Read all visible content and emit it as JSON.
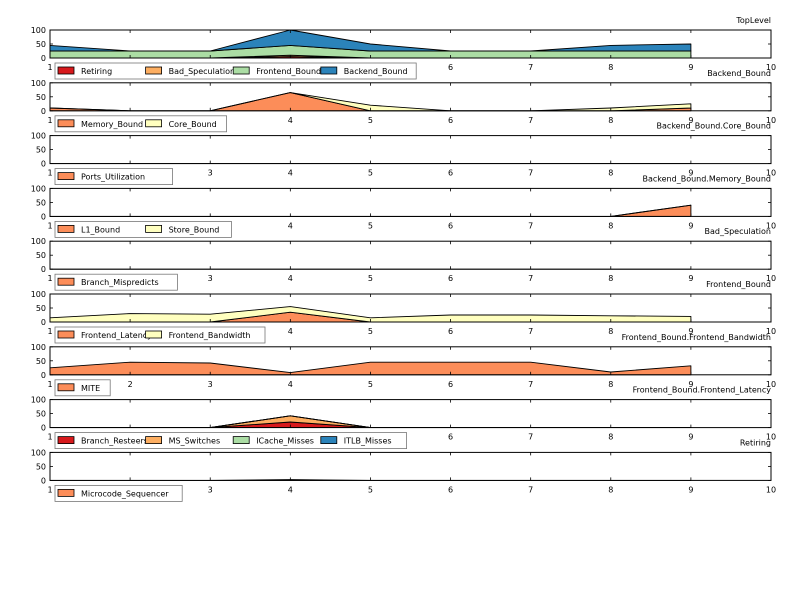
{
  "chart_data": [
    {
      "type": "area",
      "title": "TopLevel",
      "x": [
        1,
        2,
        3,
        4,
        5,
        6,
        7,
        8,
        9
      ],
      "xlim": [
        1,
        10
      ],
      "ylim": [
        0,
        100
      ],
      "y_ticks": [
        0,
        50,
        100
      ],
      "x_ticks": [
        1,
        2,
        3,
        4,
        5,
        6,
        7,
        8,
        9,
        10
      ],
      "stacked": true,
      "series": [
        {
          "name": "Retiring",
          "color": "#d7191c",
          "values": [
            0,
            0,
            0,
            5,
            0,
            0,
            0,
            0,
            0
          ]
        },
        {
          "name": "Bad_Speculation",
          "color": "#fdae61",
          "values": [
            0,
            0,
            0,
            5,
            0,
            0,
            0,
            0,
            0
          ]
        },
        {
          "name": "Frontend_Bound",
          "color": "#abdda4",
          "values": [
            25,
            25,
            25,
            35,
            25,
            25,
            25,
            25,
            25
          ]
        },
        {
          "name": "Backend_Bound",
          "color": "#2b83ba",
          "values": [
            20,
            0,
            0,
            55,
            25,
            0,
            0,
            20,
            25
          ]
        }
      ]
    },
    {
      "type": "area",
      "title": "Backend_Bound",
      "x": [
        1,
        2,
        3,
        4,
        5,
        6,
        7,
        8,
        9
      ],
      "xlim": [
        1,
        10
      ],
      "ylim": [
        0,
        100
      ],
      "y_ticks": [
        0,
        50,
        100
      ],
      "x_ticks": [
        1,
        2,
        3,
        4,
        5,
        6,
        7,
        8,
        9,
        10
      ],
      "stacked": true,
      "series": [
        {
          "name": "Memory_Bound",
          "color": "#fc8d59",
          "values": [
            10,
            0,
            0,
            65,
            0,
            0,
            0,
            0,
            10
          ]
        },
        {
          "name": "Core_Bound",
          "color": "#ffffbf",
          "values": [
            0,
            0,
            0,
            0,
            20,
            0,
            0,
            10,
            15
          ]
        }
      ]
    },
    {
      "type": "area",
      "title": "Backend_Bound.Core_Bound",
      "x": [
        1,
        2,
        3,
        4,
        5,
        6,
        7,
        8,
        9
      ],
      "xlim": [
        1,
        10
      ],
      "ylim": [
        0,
        100
      ],
      "y_ticks": [
        0,
        50,
        100
      ],
      "x_ticks": [
        1,
        2,
        3,
        4,
        5,
        6,
        7,
        8,
        9,
        10
      ],
      "stacked": true,
      "series": [
        {
          "name": "Ports_Utilization",
          "color": "#fc8d59",
          "values": [
            0,
            0,
            0,
            0,
            0,
            0,
            0,
            0,
            0
          ]
        }
      ]
    },
    {
      "type": "area",
      "title": "Backend_Bound.Memory_Bound",
      "x": [
        1,
        2,
        3,
        4,
        5,
        6,
        7,
        8,
        9
      ],
      "xlim": [
        1,
        10
      ],
      "ylim": [
        0,
        100
      ],
      "y_ticks": [
        0,
        50,
        100
      ],
      "x_ticks": [
        1,
        2,
        3,
        4,
        5,
        6,
        7,
        8,
        9,
        10
      ],
      "stacked": true,
      "series": [
        {
          "name": "L1_Bound",
          "color": "#fc8d59",
          "values": [
            0,
            0,
            0,
            0,
            0,
            0,
            0,
            0,
            40
          ]
        },
        {
          "name": "Store_Bound",
          "color": "#ffffbf",
          "values": [
            0,
            0,
            0,
            0,
            0,
            0,
            0,
            0,
            0
          ]
        }
      ]
    },
    {
      "type": "area",
      "title": "Bad_Speculation",
      "x": [
        1,
        2,
        3,
        4,
        5,
        6,
        7,
        8,
        9
      ],
      "xlim": [
        1,
        10
      ],
      "ylim": [
        0,
        100
      ],
      "y_ticks": [
        0,
        50,
        100
      ],
      "x_ticks": [
        1,
        2,
        3,
        4,
        5,
        6,
        7,
        8,
        9,
        10
      ],
      "stacked": true,
      "series": [
        {
          "name": "Branch_Mispredicts",
          "color": "#fc8d59",
          "values": [
            0,
            0,
            0,
            0,
            0,
            0,
            0,
            0,
            0
          ]
        }
      ]
    },
    {
      "type": "area",
      "title": "Frontend_Bound",
      "x": [
        1,
        2,
        3,
        4,
        5,
        6,
        7,
        8,
        9
      ],
      "xlim": [
        1,
        10
      ],
      "ylim": [
        0,
        100
      ],
      "y_ticks": [
        0,
        50,
        100
      ],
      "x_ticks": [
        1,
        2,
        3,
        4,
        5,
        6,
        7,
        8,
        9,
        10
      ],
      "stacked": true,
      "series": [
        {
          "name": "Frontend_Latency",
          "color": "#fc8d59",
          "values": [
            0,
            0,
            0,
            35,
            0,
            0,
            0,
            0,
            0
          ]
        },
        {
          "name": "Frontend_Bandwidth",
          "color": "#ffffbf",
          "values": [
            15,
            30,
            28,
            20,
            15,
            25,
            25,
            22,
            20
          ]
        }
      ]
    },
    {
      "type": "area",
      "title": "Frontend_Bound.Frontend_Bandwidth",
      "x": [
        1,
        2,
        3,
        4,
        5,
        6,
        7,
        8,
        9
      ],
      "xlim": [
        1,
        10
      ],
      "ylim": [
        0,
        100
      ],
      "y_ticks": [
        0,
        50,
        100
      ],
      "x_ticks": [
        1,
        2,
        3,
        4,
        5,
        6,
        7,
        8,
        9,
        10
      ],
      "stacked": true,
      "series": [
        {
          "name": "MITE",
          "color": "#fc8d59",
          "values": [
            25,
            45,
            42,
            8,
            45,
            45,
            45,
            10,
            32
          ]
        }
      ]
    },
    {
      "type": "area",
      "title": "Frontend_Bound.Frontend_Latency",
      "x": [
        1,
        2,
        3,
        4,
        5,
        6,
        7,
        8,
        9
      ],
      "xlim": [
        1,
        10
      ],
      "ylim": [
        0,
        100
      ],
      "y_ticks": [
        0,
        50,
        100
      ],
      "x_ticks": [
        1,
        2,
        3,
        4,
        5,
        6,
        7,
        8,
        9,
        10
      ],
      "stacked": true,
      "series": [
        {
          "name": "Branch_Resteers",
          "color": "#d7191c",
          "values": [
            0,
            0,
            0,
            20,
            0,
            0,
            0,
            0,
            0
          ]
        },
        {
          "name": "MS_Switches",
          "color": "#fdae61",
          "values": [
            0,
            0,
            0,
            22,
            0,
            0,
            0,
            0,
            0
          ]
        },
        {
          "name": "ICache_Misses",
          "color": "#abdda4",
          "values": [
            0,
            0,
            0,
            0,
            0,
            0,
            0,
            0,
            0
          ]
        },
        {
          "name": "ITLB_Misses",
          "color": "#2b83ba",
          "values": [
            0,
            0,
            0,
            0,
            0,
            0,
            0,
            0,
            0
          ]
        }
      ]
    },
    {
      "type": "area",
      "title": "Retiring",
      "x": [
        1,
        2,
        3,
        4,
        5,
        6,
        7,
        8,
        9
      ],
      "xlim": [
        1,
        10
      ],
      "ylim": [
        0,
        100
      ],
      "y_ticks": [
        0,
        50,
        100
      ],
      "x_ticks": [
        1,
        2,
        3,
        4,
        5,
        6,
        7,
        8,
        9,
        10
      ],
      "stacked": true,
      "series": [
        {
          "name": "Microcode_Sequencer",
          "color": "#fc8d59",
          "values": [
            0,
            0,
            0,
            3,
            0,
            0,
            0,
            0,
            0
          ]
        }
      ]
    }
  ]
}
